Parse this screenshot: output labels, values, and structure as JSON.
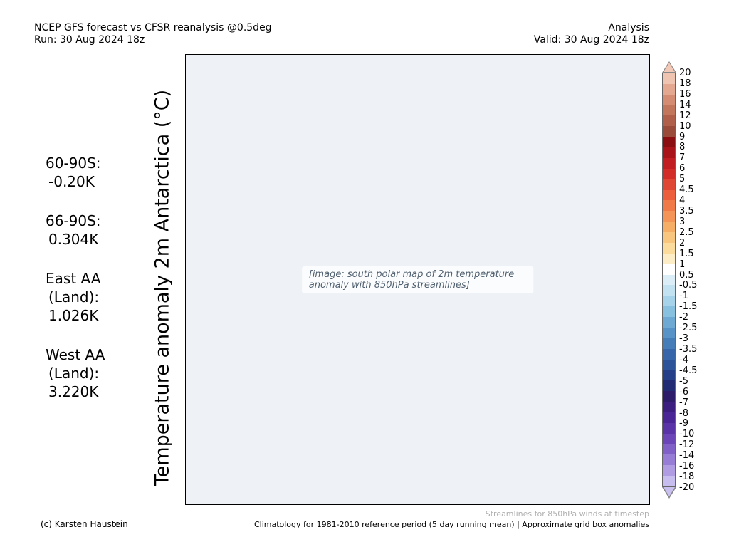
{
  "header": {
    "title": "NCEP GFS forecast vs CFSR reanalysis @0.5deg",
    "run": "Run: 30 Aug 2024 18z",
    "type": "Analysis",
    "valid": "Valid: 30 Aug 2024 18z"
  },
  "vertical_label": "Temperature anomaly 2m Antarctica (°C)",
  "stats": [
    {
      "line1": "60-90S:",
      "line2": "-0.20K"
    },
    {
      "line1": "66-90S:",
      "line2": "0.304K"
    },
    {
      "line1": "East AA",
      "line2": "(Land):",
      "line3": "1.026K"
    },
    {
      "line1": "West AA",
      "line2": "(Land):",
      "line3": "3.220K"
    }
  ],
  "map": {
    "placeholder": "[image: south polar map of 2m temperature anomaly with 850hPa streamlines]"
  },
  "colorbar": {
    "labels": [
      "20",
      "18",
      "16",
      "14",
      "12",
      "10",
      "9",
      "8",
      "7",
      "6",
      "5",
      "4.5",
      "4",
      "3.5",
      "3",
      "2.5",
      "2",
      "1.5",
      "1",
      "0.5",
      "-0.5",
      "-1",
      "-1.5",
      "-2",
      "-2.5",
      "-3",
      "-3.5",
      "-4",
      "-4.5",
      "-5",
      "-6",
      "-7",
      "-8",
      "-9",
      "-10",
      "-12",
      "-14",
      "-16",
      "-18",
      "-20"
    ],
    "colors": [
      "#efc4b0",
      "#e3a88f",
      "#d48d72",
      "#c2765c",
      "#b0604a",
      "#9b4b39",
      "#8a0e12",
      "#a8141a",
      "#c01e22",
      "#d32d2a",
      "#e04634",
      "#ec5e3c",
      "#f07a48",
      "#f49457",
      "#f6ae67",
      "#f8c67e",
      "#fbdc9c",
      "#fdedc6",
      "#ffffff",
      "#dbeef7",
      "#c3e2f1",
      "#a6d2ea",
      "#88c0e0",
      "#6ea9d4",
      "#5793c6",
      "#457db8",
      "#3767aa",
      "#2d539a",
      "#253f88",
      "#222c74",
      "#2c1c6a",
      "#3b1e80",
      "#4a2596",
      "#5a33a8",
      "#6c46b8",
      "#8160c8",
      "#987dd6",
      "#b09ce3",
      "#c8bdef"
    ]
  },
  "footer": {
    "streamlines_note": "Streamlines for 850hPa winds at timestep",
    "credit": "(c) Karsten Haustein",
    "climatology": "Climatology for 1981-2010 reference period (5 day running mean) | Approximate grid box anomalies"
  }
}
